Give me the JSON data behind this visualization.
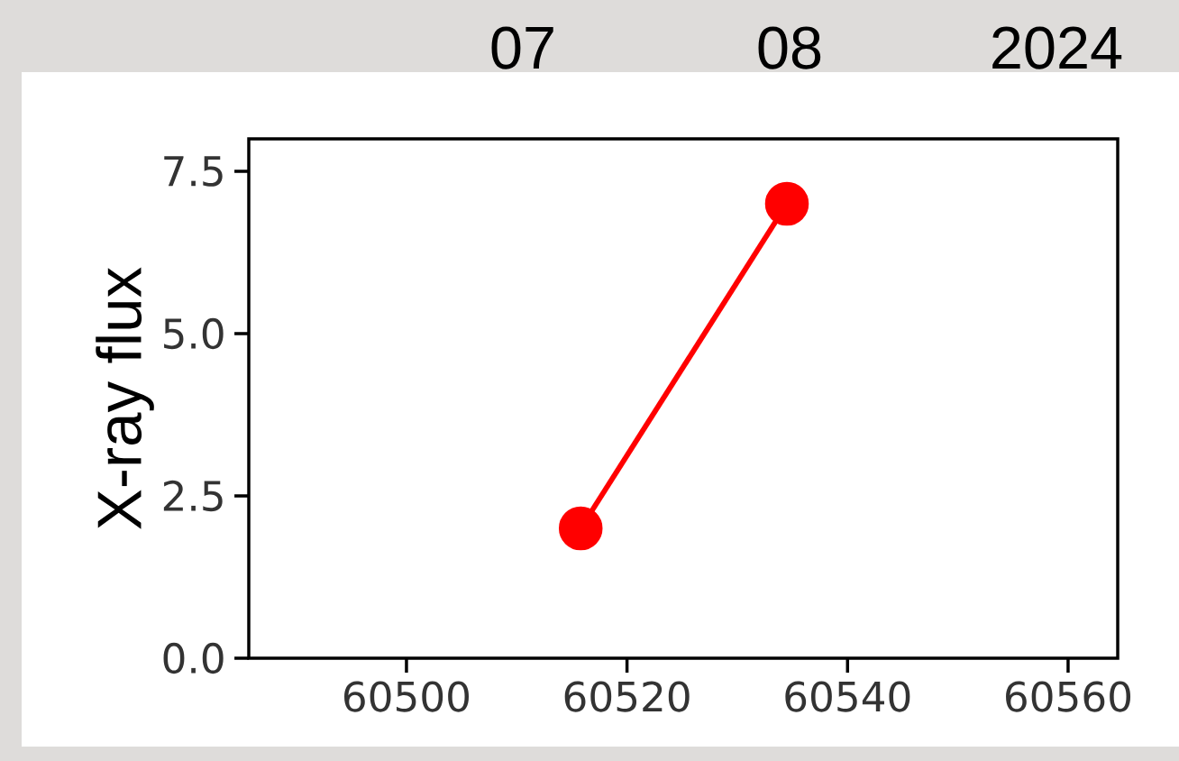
{
  "chart_data": {
    "type": "line",
    "ylabel": "X-ray flux",
    "x": [
      60515.8,
      60534.5
    ],
    "values": [
      2.0,
      7.0
    ],
    "color": "#ff0000",
    "marker": "circle",
    "line_style": "solid",
    "xlim": [
      60485.7,
      60564.5
    ],
    "ylim": [
      0,
      8
    ],
    "xticks": [
      60500,
      60520,
      60540,
      60560
    ],
    "yticks": [
      {
        "value": 0,
        "label": "0.0"
      },
      {
        "value": 2.5,
        "label": "2.5"
      },
      {
        "value": 5,
        "label": "5.0"
      },
      {
        "value": 7.5,
        "label": "7.5"
      }
    ],
    "annotations": [
      "07",
      "08",
      "2024"
    ]
  }
}
